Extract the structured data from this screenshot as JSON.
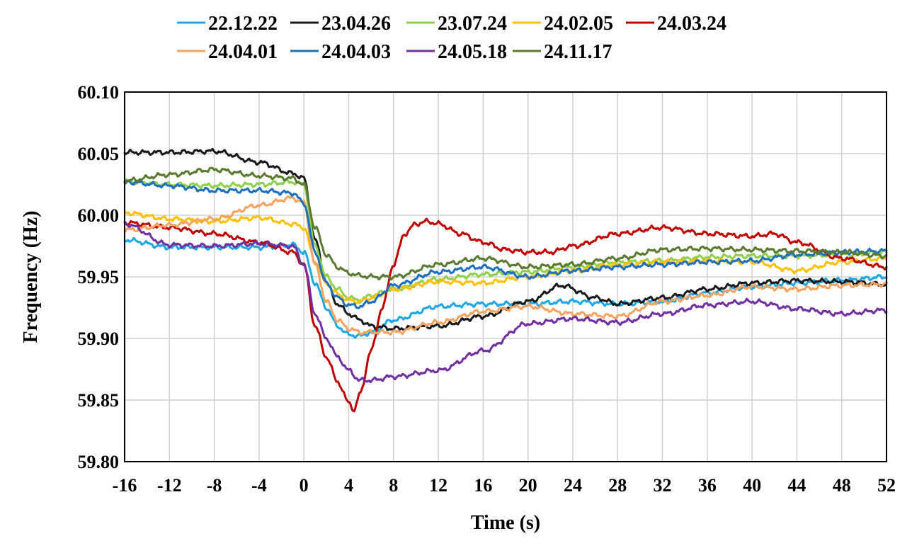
{
  "chart_data": {
    "type": "line",
    "title": "",
    "xlabel": "Time (s)",
    "ylabel": "Frequency (Hz)",
    "xlim": [
      -16,
      52
    ],
    "ylim": [
      59.8,
      60.1
    ],
    "x_ticks": [
      "-16",
      "-12",
      "-8",
      "-4",
      "0",
      "4",
      "8",
      "12",
      "16",
      "20",
      "24",
      "28",
      "32",
      "36",
      "40",
      "44",
      "48",
      "52"
    ],
    "y_ticks": [
      "59.80",
      "59.85",
      "59.90",
      "59.95",
      "60.00",
      "60.05",
      "60.10"
    ],
    "grid": true,
    "legend_position": "top",
    "series": [
      {
        "name": "22.12.22",
        "color": "#1ea7e8",
        "x": [
          -16,
          -12,
          -8,
          -4,
          -1,
          0,
          1,
          2,
          3,
          4,
          5,
          6,
          8,
          12,
          16,
          20,
          24,
          28,
          32,
          36,
          40,
          44,
          48,
          52
        ],
        "y": [
          59.98,
          59.974,
          59.974,
          59.974,
          59.976,
          59.97,
          59.945,
          59.925,
          59.91,
          59.903,
          59.902,
          59.905,
          59.915,
          59.926,
          59.928,
          59.928,
          59.93,
          59.928,
          59.93,
          59.937,
          59.942,
          59.945,
          59.947,
          59.95
        ]
      },
      {
        "name": "23.04.26",
        "color": "#1a1a1a",
        "x": [
          -16,
          -12,
          -8,
          -4,
          -1,
          0,
          1,
          2,
          3,
          4,
          5,
          6,
          8,
          12,
          16,
          20,
          23,
          26,
          28,
          32,
          36,
          40,
          44,
          48,
          52
        ],
        "y": [
          60.051,
          60.051,
          60.052,
          60.043,
          60.034,
          60.03,
          59.98,
          59.945,
          59.928,
          59.92,
          59.915,
          59.91,
          59.908,
          59.91,
          59.918,
          59.93,
          59.943,
          59.933,
          59.928,
          59.933,
          59.94,
          59.945,
          59.947,
          59.946,
          59.944
        ]
      },
      {
        "name": "23.07.24",
        "color": "#8ed04b",
        "x": [
          -16,
          -12,
          -8,
          -4,
          -1,
          0,
          1,
          2,
          3,
          4,
          5,
          6,
          8,
          12,
          16,
          20,
          24,
          28,
          32,
          36,
          40,
          44,
          48,
          52
        ],
        "y": [
          60.027,
          60.025,
          60.024,
          60.025,
          60.027,
          60.025,
          59.975,
          59.95,
          59.94,
          59.933,
          59.931,
          59.935,
          59.94,
          59.948,
          59.952,
          59.954,
          59.958,
          59.962,
          59.963,
          59.966,
          59.967,
          59.967,
          59.968,
          59.97
        ]
      },
      {
        "name": "24.02.05",
        "color": "#ffc000",
        "x": [
          -16,
          -12,
          -8,
          -4,
          -1,
          0,
          1,
          2,
          3,
          4,
          5,
          6,
          8,
          12,
          16,
          20,
          24,
          28,
          32,
          36,
          40,
          44,
          48,
          52
        ],
        "y": [
          60.002,
          59.997,
          59.995,
          59.998,
          59.993,
          59.99,
          59.962,
          59.945,
          59.936,
          59.931,
          59.93,
          59.933,
          59.94,
          59.946,
          59.945,
          59.95,
          59.955,
          59.96,
          59.962,
          59.963,
          59.962,
          59.955,
          59.962,
          59.965
        ]
      },
      {
        "name": "24.03.24",
        "color": "#c00000",
        "x": [
          -16,
          -12,
          -8,
          -4,
          -1,
          0,
          1,
          2,
          3,
          4,
          4.5,
          5,
          6,
          7,
          8,
          9,
          10,
          11,
          12,
          14,
          16,
          18,
          20,
          22,
          24,
          28,
          32,
          36,
          40,
          42,
          44,
          48,
          52
        ],
        "y": [
          59.994,
          59.99,
          59.985,
          59.978,
          59.97,
          59.96,
          59.91,
          59.885,
          59.865,
          59.848,
          59.842,
          59.855,
          59.89,
          59.925,
          59.96,
          59.985,
          59.993,
          59.995,
          59.993,
          59.985,
          59.978,
          59.972,
          59.97,
          59.97,
          59.975,
          59.985,
          59.99,
          59.985,
          59.983,
          59.985,
          59.978,
          59.965,
          59.958
        ]
      },
      {
        "name": "24.04.01",
        "color": "#f4a460",
        "x": [
          -16,
          -12,
          -8,
          -4,
          -1,
          0,
          1,
          2,
          3,
          4,
          5,
          6,
          8,
          12,
          16,
          20,
          24,
          28,
          32,
          36,
          40,
          44,
          48,
          52
        ],
        "y": [
          59.988,
          59.992,
          59.997,
          60.008,
          60.014,
          60.01,
          59.96,
          59.93,
          59.915,
          59.908,
          59.905,
          59.905,
          59.905,
          59.913,
          59.922,
          59.926,
          59.92,
          59.918,
          59.93,
          59.935,
          59.942,
          59.94,
          59.943,
          59.944
        ]
      },
      {
        "name": "24.04.03",
        "color": "#1f6fbf",
        "x": [
          -16,
          -12,
          -8,
          -4,
          -1,
          0,
          1,
          2,
          3,
          4,
          5,
          6,
          8,
          12,
          16,
          20,
          24,
          28,
          32,
          36,
          40,
          44,
          48,
          52
        ],
        "y": [
          60.027,
          60.024,
          60.02,
          60.02,
          60.018,
          60.01,
          59.97,
          59.945,
          59.933,
          59.927,
          59.926,
          59.93,
          59.943,
          59.954,
          59.958,
          59.95,
          59.955,
          59.958,
          59.96,
          59.962,
          59.963,
          59.968,
          59.97,
          59.971
        ]
      },
      {
        "name": "24.05.18",
        "color": "#7030a0",
        "x": [
          -16,
          -12,
          -8,
          -4,
          -1,
          0,
          1,
          2,
          3,
          4,
          5,
          6,
          8,
          12,
          16,
          20,
          24,
          28,
          32,
          36,
          40,
          44,
          48,
          52
        ],
        "y": [
          59.993,
          59.976,
          59.975,
          59.977,
          59.975,
          59.96,
          59.92,
          59.9,
          59.885,
          59.874,
          59.866,
          59.866,
          59.869,
          59.874,
          59.89,
          59.912,
          59.916,
          59.913,
          59.92,
          59.927,
          59.93,
          59.924,
          59.92,
          59.923
        ]
      },
      {
        "name": "24.11.17",
        "color": "#5a7a30",
        "x": [
          -16,
          -12,
          -8,
          -4,
          -1,
          0,
          1,
          2,
          3,
          4,
          5,
          6,
          8,
          12,
          16,
          20,
          24,
          28,
          32,
          36,
          40,
          44,
          48,
          52
        ],
        "y": [
          60.028,
          60.033,
          60.037,
          60.032,
          60.03,
          60.025,
          59.99,
          59.968,
          59.958,
          59.953,
          59.951,
          59.95,
          59.95,
          59.96,
          59.965,
          59.958,
          59.96,
          59.965,
          59.972,
          59.973,
          59.972,
          59.971,
          59.97,
          59.967
        ]
      }
    ]
  }
}
